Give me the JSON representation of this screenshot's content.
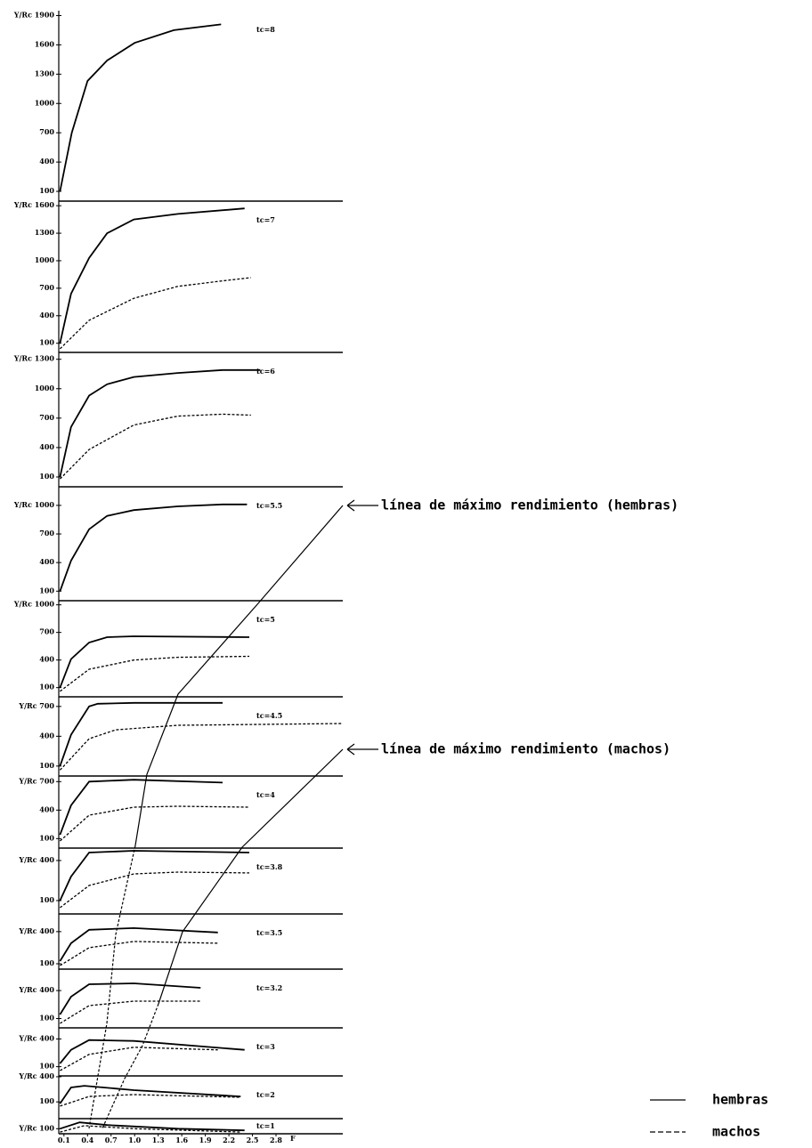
{
  "chart_data": [
    {
      "type": "line",
      "annotation": "tc=8",
      "xlim": [
        0,
        3.65
      ],
      "ylim": [
        0,
        1950
      ],
      "yticks": [
        {
          "value": 1900,
          "label": "Y/Rc 1900"
        },
        1600,
        1300,
        1000,
        700,
        400,
        100
      ],
      "series": [
        {
          "name": "hembras",
          "color": "#000000",
          "style": "solid",
          "x": [
            0.05,
            0.2,
            0.4,
            0.65,
            1.0,
            1.5,
            2.1
          ],
          "values": [
            100,
            700,
            1230,
            1440,
            1620,
            1750,
            1810
          ]
        }
      ]
    },
    {
      "type": "line",
      "annotation": "tc=7",
      "xlim": [
        0,
        3.65
      ],
      "ylim": [
        0,
        1650
      ],
      "yticks": [
        {
          "value": 1600,
          "label": "Y/Rc 1600"
        },
        1300,
        1000,
        700,
        400,
        100
      ],
      "series": [
        {
          "name": "hembras",
          "color": "#000000",
          "style": "solid",
          "x": [
            0.05,
            0.19,
            0.42,
            0.65,
            0.99,
            1.55,
            2.4
          ],
          "values": [
            100,
            640,
            1030,
            1300,
            1450,
            1510,
            1570
          ]
        },
        {
          "name": "machos",
          "color": "#000000",
          "style": "dashed",
          "x": [
            0.05,
            0.42,
            0.99,
            1.55,
            2.12,
            2.48
          ],
          "values": [
            40,
            350,
            590,
            720,
            780,
            815
          ]
        }
      ]
    },
    {
      "type": "line",
      "annotation": "tc=6",
      "xlim": [
        0,
        3.65
      ],
      "ylim": [
        0,
        1370
      ],
      "yticks": [
        {
          "value": 1300,
          "label": "Y/Rc 1300"
        },
        1000,
        700,
        400,
        100
      ],
      "series": [
        {
          "name": "hembras",
          "color": "#000000",
          "style": "solid",
          "x": [
            0.05,
            0.19,
            0.42,
            0.65,
            0.99,
            1.55,
            2.12,
            2.6
          ],
          "values": [
            100,
            610,
            930,
            1045,
            1120,
            1160,
            1190,
            1190
          ]
        },
        {
          "name": "machos",
          "color": "#000000",
          "style": "dashed",
          "x": [
            0.05,
            0.42,
            0.99,
            1.55,
            2.12,
            2.48
          ],
          "values": [
            80,
            380,
            630,
            720,
            740,
            730
          ]
        }
      ]
    },
    {
      "type": "line",
      "annotation": "tc=5.5",
      "xlim": [
        0,
        3.65
      ],
      "ylim": [
        0,
        1195
      ],
      "yticks": [
        {
          "value": 1000,
          "label": "Y/Rc 1000"
        },
        700,
        400,
        100
      ],
      "series": [
        {
          "name": "hembras",
          "color": "#000000",
          "style": "solid",
          "x": [
            0.05,
            0.19,
            0.42,
            0.65,
            0.99,
            1.55,
            2.12,
            2.43
          ],
          "values": [
            100,
            420,
            750,
            890,
            950,
            990,
            1010,
            1010
          ]
        }
      ]
    },
    {
      "type": "line",
      "annotation": "tc=5",
      "xlim": [
        0,
        3.65
      ],
      "ylim": [
        0,
        1045
      ],
      "yticks": [
        {
          "value": 1000,
          "label": "Y/Rc 1000"
        },
        700,
        400,
        100
      ],
      "series": [
        {
          "name": "hembras",
          "color": "#000000",
          "style": "solid",
          "x": [
            0.05,
            0.19,
            0.42,
            0.65,
            0.99,
            2.46
          ],
          "values": [
            100,
            410,
            590,
            648,
            658,
            648
          ]
        },
        {
          "name": "machos",
          "color": "#000000",
          "style": "dashed",
          "x": [
            0.05,
            0.42,
            0.99,
            1.55,
            2.46
          ],
          "values": [
            60,
            300,
            400,
            430,
            440
          ]
        }
      ]
    },
    {
      "type": "line",
      "annotation": "tc=4.5",
      "xlim": [
        0,
        3.65
      ],
      "ylim": [
        0,
        797
      ],
      "yticks": [
        {
          "value": 700,
          "label": "Y/Rc 700"
        },
        400,
        100
      ],
      "series": [
        {
          "name": "hembras",
          "color": "#000000",
          "style": "solid",
          "x": [
            0.05,
            0.19,
            0.42,
            0.53,
            0.99,
            2.12
          ],
          "values": [
            100,
            415,
            700,
            727,
            736,
            736
          ]
        },
        {
          "name": "machos",
          "color": "#000000",
          "style": "dashed",
          "x": [
            0.05,
            0.42,
            0.76,
            1.55,
            3.65
          ],
          "values": [
            60,
            375,
            465,
            510,
            528
          ]
        }
      ]
    },
    {
      "type": "line",
      "annotation": "tc=4",
      "xlim": [
        0,
        3.65
      ],
      "ylim": [
        0,
        759
      ],
      "yticks": [
        {
          "value": 700,
          "label": "Y/Rc 700"
        },
        400,
        100
      ],
      "series": [
        {
          "name": "hembras",
          "color": "#000000",
          "style": "solid",
          "x": [
            0.05,
            0.19,
            0.42,
            0.99,
            2.12
          ],
          "values": [
            140,
            450,
            700,
            720,
            690
          ]
        },
        {
          "name": "machos",
          "color": "#000000",
          "style": "dashed",
          "x": [
            0.05,
            0.42,
            0.99,
            1.55,
            2.46
          ],
          "values": [
            75,
            347,
            431,
            440,
            431
          ]
        }
      ]
    },
    {
      "type": "line",
      "annotation": "tc=3.8",
      "xlim": [
        0,
        3.65
      ],
      "ylim": [
        0,
        493
      ],
      "yticks": [
        {
          "value": 400,
          "label": "Y/Rc 400"
        },
        100
      ],
      "series": [
        {
          "name": "hembras",
          "color": "#000000",
          "style": "solid",
          "x": [
            0.05,
            0.19,
            0.42,
            0.99,
            2.46
          ],
          "values": [
            100,
            280,
            460,
            473,
            460
          ]
        },
        {
          "name": "machos",
          "color": "#000000",
          "style": "dashed",
          "x": [
            0.05,
            0.42,
            0.99,
            1.55,
            2.46
          ],
          "values": [
            47,
            213,
            300,
            313,
            307
          ]
        }
      ]
    },
    {
      "type": "line",
      "annotation": "tc=3.5",
      "xlim": [
        0,
        3.65
      ],
      "ylim": [
        50,
        565
      ],
      "yticks": [
        {
          "value": 400,
          "label": "Y/Rc 400"
        },
        100
      ],
      "series": [
        {
          "name": "hembras",
          "color": "#000000",
          "style": "solid",
          "x": [
            0.05,
            0.19,
            0.42,
            0.99,
            2.06
          ],
          "values": [
            125,
            292,
            417,
            433,
            392
          ]
        },
        {
          "name": "machos",
          "color": "#000000",
          "style": "dashed",
          "x": [
            0.05,
            0.42,
            0.99,
            2.06
          ],
          "values": [
            83,
            250,
            308,
            292
          ]
        }
      ]
    },
    {
      "type": "line",
      "annotation": "tc=3.2",
      "xlim": [
        0,
        3.65
      ],
      "ylim": [
        0,
        630
      ],
      "yticks": [
        {
          "value": 400,
          "label": "Y/Rc 400"
        },
        100
      ],
      "series": [
        {
          "name": "hembras",
          "color": "#000000",
          "style": "solid",
          "x": [
            0.05,
            0.19,
            0.42,
            0.99,
            1.84
          ],
          "values": [
            143,
            334,
            468,
            477,
            430
          ]
        },
        {
          "name": "machos",
          "color": "#000000",
          "style": "dashed",
          "x": [
            0.05,
            0.42,
            0.99,
            1.84
          ],
          "values": [
            48,
            239,
            286,
            286
          ]
        }
      ]
    },
    {
      "type": "line",
      "annotation": "tc=3",
      "xlim": [
        0,
        3.65
      ],
      "ylim": [
        0,
        520
      ],
      "yticks": [
        {
          "value": 400,
          "label": "Y/Rc 400"
        },
        100
      ],
      "series": [
        {
          "name": "hembras",
          "color": "#000000",
          "style": "solid",
          "x": [
            0.05,
            0.19,
            0.42,
            0.99,
            2.4
          ],
          "values": [
            135,
            282,
            388,
            378,
            282
          ]
        },
        {
          "name": "machos",
          "color": "#000000",
          "style": "dashed",
          "x": [
            0.05,
            0.42,
            0.99,
            2.06
          ],
          "values": [
            58,
            233,
            310,
            282
          ]
        }
      ]
    },
    {
      "type": "line",
      "annotation": "tc=2",
      "xlim": [
        0,
        3.65
      ],
      "ylim": [
        -100,
        410
      ],
      "yticks": [
        {
          "value": 400,
          "label": "Y/Rc 400"
        },
        100
      ],
      "series": [
        {
          "name": "hembras",
          "color": "#000000",
          "style": "solid",
          "x": [
            0.05,
            0.19,
            0.36,
            0.99,
            2.35
          ],
          "values": [
            80,
            272,
            292,
            240,
            165
          ]
        },
        {
          "name": "machos",
          "color": "#000000",
          "style": "dashed",
          "x": [
            0.05,
            0.42,
            0.99,
            2.35
          ],
          "values": [
            50,
            165,
            187,
            155
          ]
        }
      ]
    },
    {
      "type": "line",
      "annotation": "tc=1",
      "xlim": [
        0,
        3.65
      ],
      "ylim": [
        70,
        160
      ],
      "yticks": [
        {
          "value": 100,
          "label": "Y/Rc 100"
        }
      ],
      "xticks": [
        0.1,
        0.4,
        0.7,
        {
          "value": 1,
          "label": "1.0"
        },
        1.3,
        1.6,
        1.9,
        2.2,
        2.5,
        2.8
      ],
      "xlabel": "F",
      "series": [
        {
          "name": "hembras",
          "color": "#000000",
          "style": "solid",
          "x": [
            0.05,
            0.3,
            0.65,
            1.55,
            2.4
          ],
          "values": [
            100,
            138,
            122,
            100,
            90
          ]
        },
        {
          "name": "machos",
          "color": "#000000",
          "style": "dashed",
          "x": [
            0.05,
            0.36,
            0.99,
            2.35
          ],
          "values": [
            80,
            118,
            100,
            80
          ]
        }
      ]
    }
  ],
  "annotations": [
    "línea de máximo rendimiento (hembras)",
    "línea de máximo rendimiento (machos)"
  ]
}
